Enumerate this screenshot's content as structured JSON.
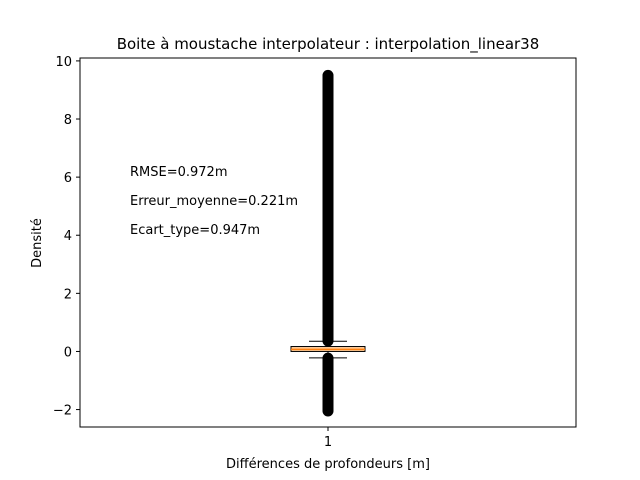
{
  "chart_data": {
    "type": "boxplot",
    "title": "Boite à moustache interpolateur : interpolation_linear38",
    "xlabel": "Différences de profondeurs [m]",
    "ylabel": "Densité",
    "ylim": [
      -2.6,
      10.1
    ],
    "yticks": [
      -2,
      0,
      2,
      4,
      6,
      8,
      10
    ],
    "ytick_labels": [
      "−2",
      "0",
      "2",
      "4",
      "6",
      "8",
      "10"
    ],
    "categories": [
      "1"
    ],
    "grid": false,
    "box": {
      "q1": 0.0,
      "median": 0.07,
      "q3": 0.17,
      "whisker_low": -0.22,
      "whisker_high": 0.35,
      "fliers_high_range": [
        0.36,
        9.5
      ],
      "fliers_low_range": [
        -2.05,
        -0.23
      ]
    },
    "annotations": [
      "RMSE=0.972m",
      "Erreur_moyenne=0.221m",
      "Ecart_type=0.947m"
    ],
    "colors": {
      "box_fill": "#ffcc99",
      "median": "#ff7f0e",
      "flier": "#000000",
      "frame": "#000000"
    }
  }
}
